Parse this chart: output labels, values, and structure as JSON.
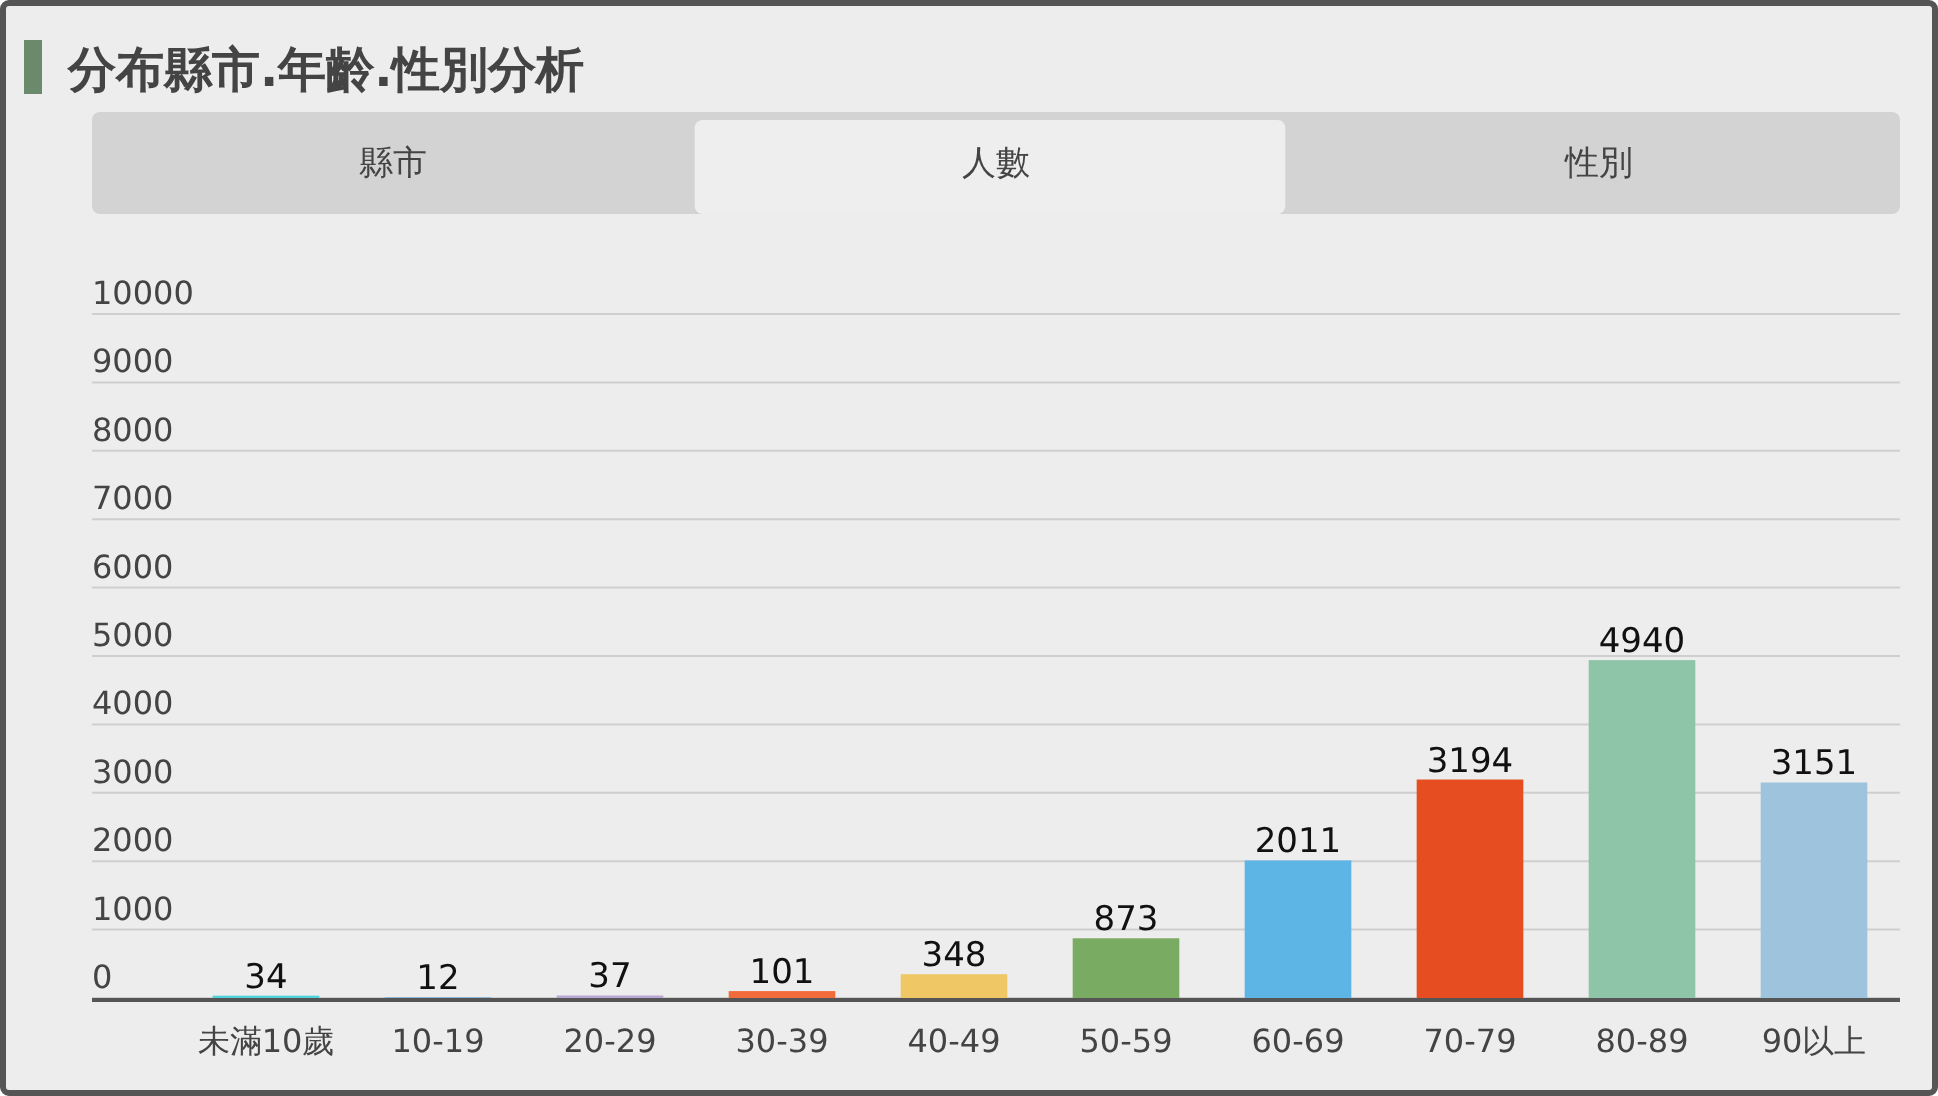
{
  "chart_data": {
    "type": "bar",
    "title": "分布縣市.年齡.性別分析",
    "annotations": [
      "縣市",
      "人數",
      "性別"
    ],
    "categories": [
      "未滿10歲",
      "10-19",
      "20-29",
      "30-39",
      "40-49",
      "50-59",
      "60-69",
      "70-79",
      "80-89",
      "90以上"
    ],
    "values": [
      34,
      12,
      37,
      101,
      348,
      873,
      2011,
      3194,
      4940,
      3151
    ],
    "colors": [
      "#4fd1d9",
      "#7fb0d8",
      "#b9a7d3",
      "#f26b3a",
      "#efc865",
      "#7aab63",
      "#5db5e6",
      "#e64d21",
      "#8ec4a8",
      "#9ec3dc"
    ],
    "ylim": [
      0,
      10000
    ],
    "yticks": [
      0,
      1000,
      2000,
      3000,
      4000,
      5000,
      6000,
      7000,
      8000,
      9000,
      10000
    ],
    "grid": "y",
    "data_labels": true
  }
}
